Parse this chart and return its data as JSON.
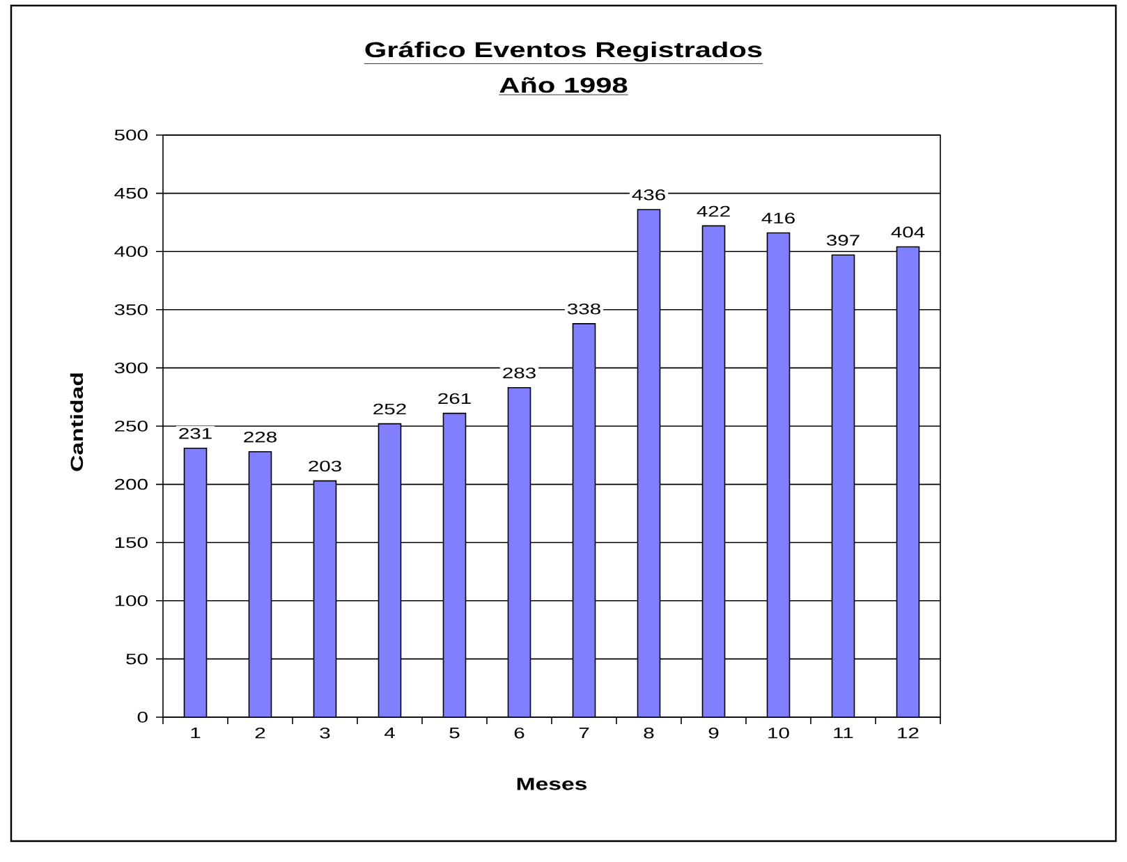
{
  "chart_data": {
    "type": "bar",
    "title": "Gráfico Eventos Registrados",
    "subtitle": "Año 1998",
    "xlabel": "Meses",
    "ylabel": "Cantidad",
    "categories": [
      "1",
      "2",
      "3",
      "4",
      "5",
      "6",
      "7",
      "8",
      "9",
      "10",
      "11",
      "12"
    ],
    "values": [
      231,
      228,
      203,
      252,
      261,
      283,
      338,
      436,
      422,
      416,
      397,
      404
    ],
    "color": "#8080ff",
    "ylim": [
      0,
      500
    ],
    "yticks": [
      0,
      50,
      100,
      150,
      200,
      250,
      300,
      350,
      400,
      450,
      500
    ],
    "grid": "y",
    "data_labels": true
  }
}
